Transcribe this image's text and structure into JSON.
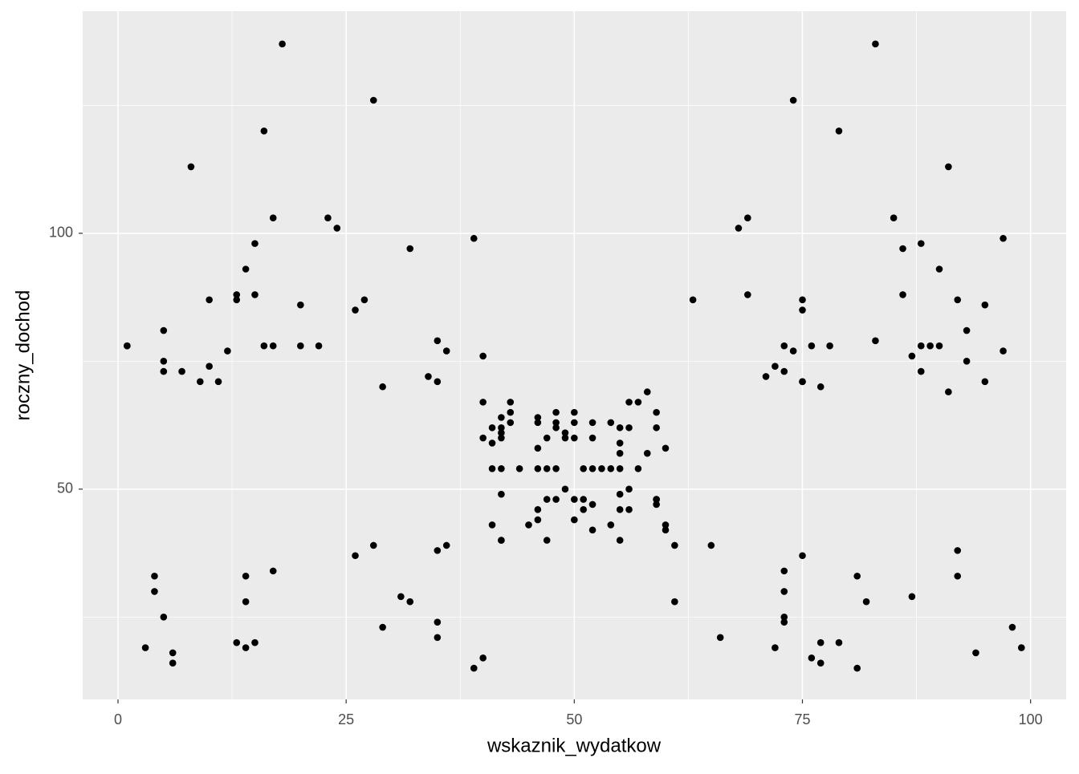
{
  "chart_data": {
    "type": "scatter",
    "x_label": "wskaznik_wydatkow",
    "y_label": "roczny_dochod",
    "xlim": [
      -3.87,
      103.9
    ],
    "ylim": [
      8.9,
      143.4
    ],
    "xticks": [
      0,
      25,
      50,
      75,
      100
    ],
    "yticks": [
      50,
      100
    ],
    "x_minor_breaks": [
      12.5,
      37.5,
      62.5,
      87.5
    ],
    "y_minor_breaks": [
      25,
      75,
      125
    ],
    "grid": true,
    "color": "#000000",
    "x": [
      39,
      81,
      6,
      77,
      40,
      76,
      6,
      94,
      3,
      72,
      14,
      99,
      15,
      77,
      13,
      79,
      35,
      66,
      29,
      98,
      35,
      73,
      5,
      73,
      14,
      82,
      32,
      61,
      31,
      87,
      4,
      73,
      4,
      92,
      14,
      81,
      17,
      73,
      26,
      75,
      35,
      92,
      36,
      61,
      28,
      65,
      55,
      47,
      42,
      42,
      52,
      60,
      54,
      60,
      45,
      41,
      50,
      46,
      51,
      46,
      56,
      55,
      52,
      59,
      51,
      59,
      50,
      48,
      59,
      47,
      55,
      42,
      49,
      56,
      47,
      54,
      53,
      48,
      52,
      42,
      51,
      55,
      41,
      44,
      57,
      46,
      58,
      55,
      60,
      46,
      55,
      41,
      49,
      40,
      42,
      52,
      47,
      50,
      42,
      49,
      41,
      48,
      59,
      55,
      56,
      42,
      50,
      46,
      43,
      48,
      52,
      54,
      42,
      46,
      48,
      50,
      43,
      59,
      43,
      57,
      56,
      40,
      58,
      91,
      29,
      77,
      35,
      95,
      11,
      75,
      9,
      75,
      34,
      71,
      5,
      88,
      7,
      73,
      10,
      72,
      5,
      93,
      40,
      87,
      12,
      97,
      36,
      74,
      22,
      90,
      17,
      88,
      20,
      76,
      16,
      89,
      1,
      78,
      1,
      73,
      35,
      83,
      5,
      93,
      26,
      75,
      20,
      95,
      27,
      63,
      13,
      75,
      10,
      92,
      13,
      86,
      15,
      69,
      14,
      90,
      32,
      86,
      15,
      88,
      39,
      97,
      24,
      68,
      17,
      85,
      23,
      69,
      8,
      91,
      16,
      79,
      28,
      74,
      18,
      83
    ],
    "y": [
      15,
      15,
      16,
      16,
      17,
      17,
      18,
      18,
      19,
      19,
      19,
      19,
      20,
      20,
      20,
      20,
      21,
      21,
      23,
      23,
      24,
      24,
      25,
      25,
      28,
      28,
      28,
      28,
      29,
      29,
      30,
      30,
      33,
      33,
      33,
      33,
      34,
      34,
      37,
      37,
      38,
      38,
      39,
      39,
      39,
      39,
      40,
      40,
      40,
      40,
      42,
      42,
      43,
      43,
      43,
      43,
      44,
      44,
      46,
      46,
      46,
      46,
      47,
      47,
      48,
      48,
      48,
      48,
      48,
      48,
      49,
      49,
      50,
      50,
      54,
      54,
      54,
      54,
      54,
      54,
      54,
      54,
      54,
      54,
      54,
      54,
      57,
      57,
      58,
      58,
      59,
      59,
      60,
      60,
      60,
      60,
      60,
      60,
      61,
      61,
      62,
      62,
      62,
      62,
      62,
      62,
      63,
      63,
      63,
      63,
      63,
      63,
      64,
      64,
      65,
      65,
      65,
      65,
      67,
      67,
      67,
      67,
      69,
      69,
      70,
      70,
      71,
      71,
      71,
      71,
      71,
      71,
      72,
      72,
      73,
      73,
      73,
      73,
      74,
      74,
      75,
      75,
      76,
      76,
      77,
      77,
      77,
      77,
      78,
      78,
      78,
      78,
      78,
      78,
      78,
      78,
      78,
      78,
      78,
      78,
      79,
      79,
      81,
      81,
      85,
      85,
      86,
      86,
      87,
      87,
      87,
      87,
      87,
      87,
      88,
      88,
      88,
      88,
      93,
      93,
      97,
      97,
      98,
      98,
      99,
      99,
      101,
      101,
      103,
      103,
      103,
      103,
      113,
      113,
      120,
      120,
      126,
      126,
      137,
      137
    ]
  }
}
